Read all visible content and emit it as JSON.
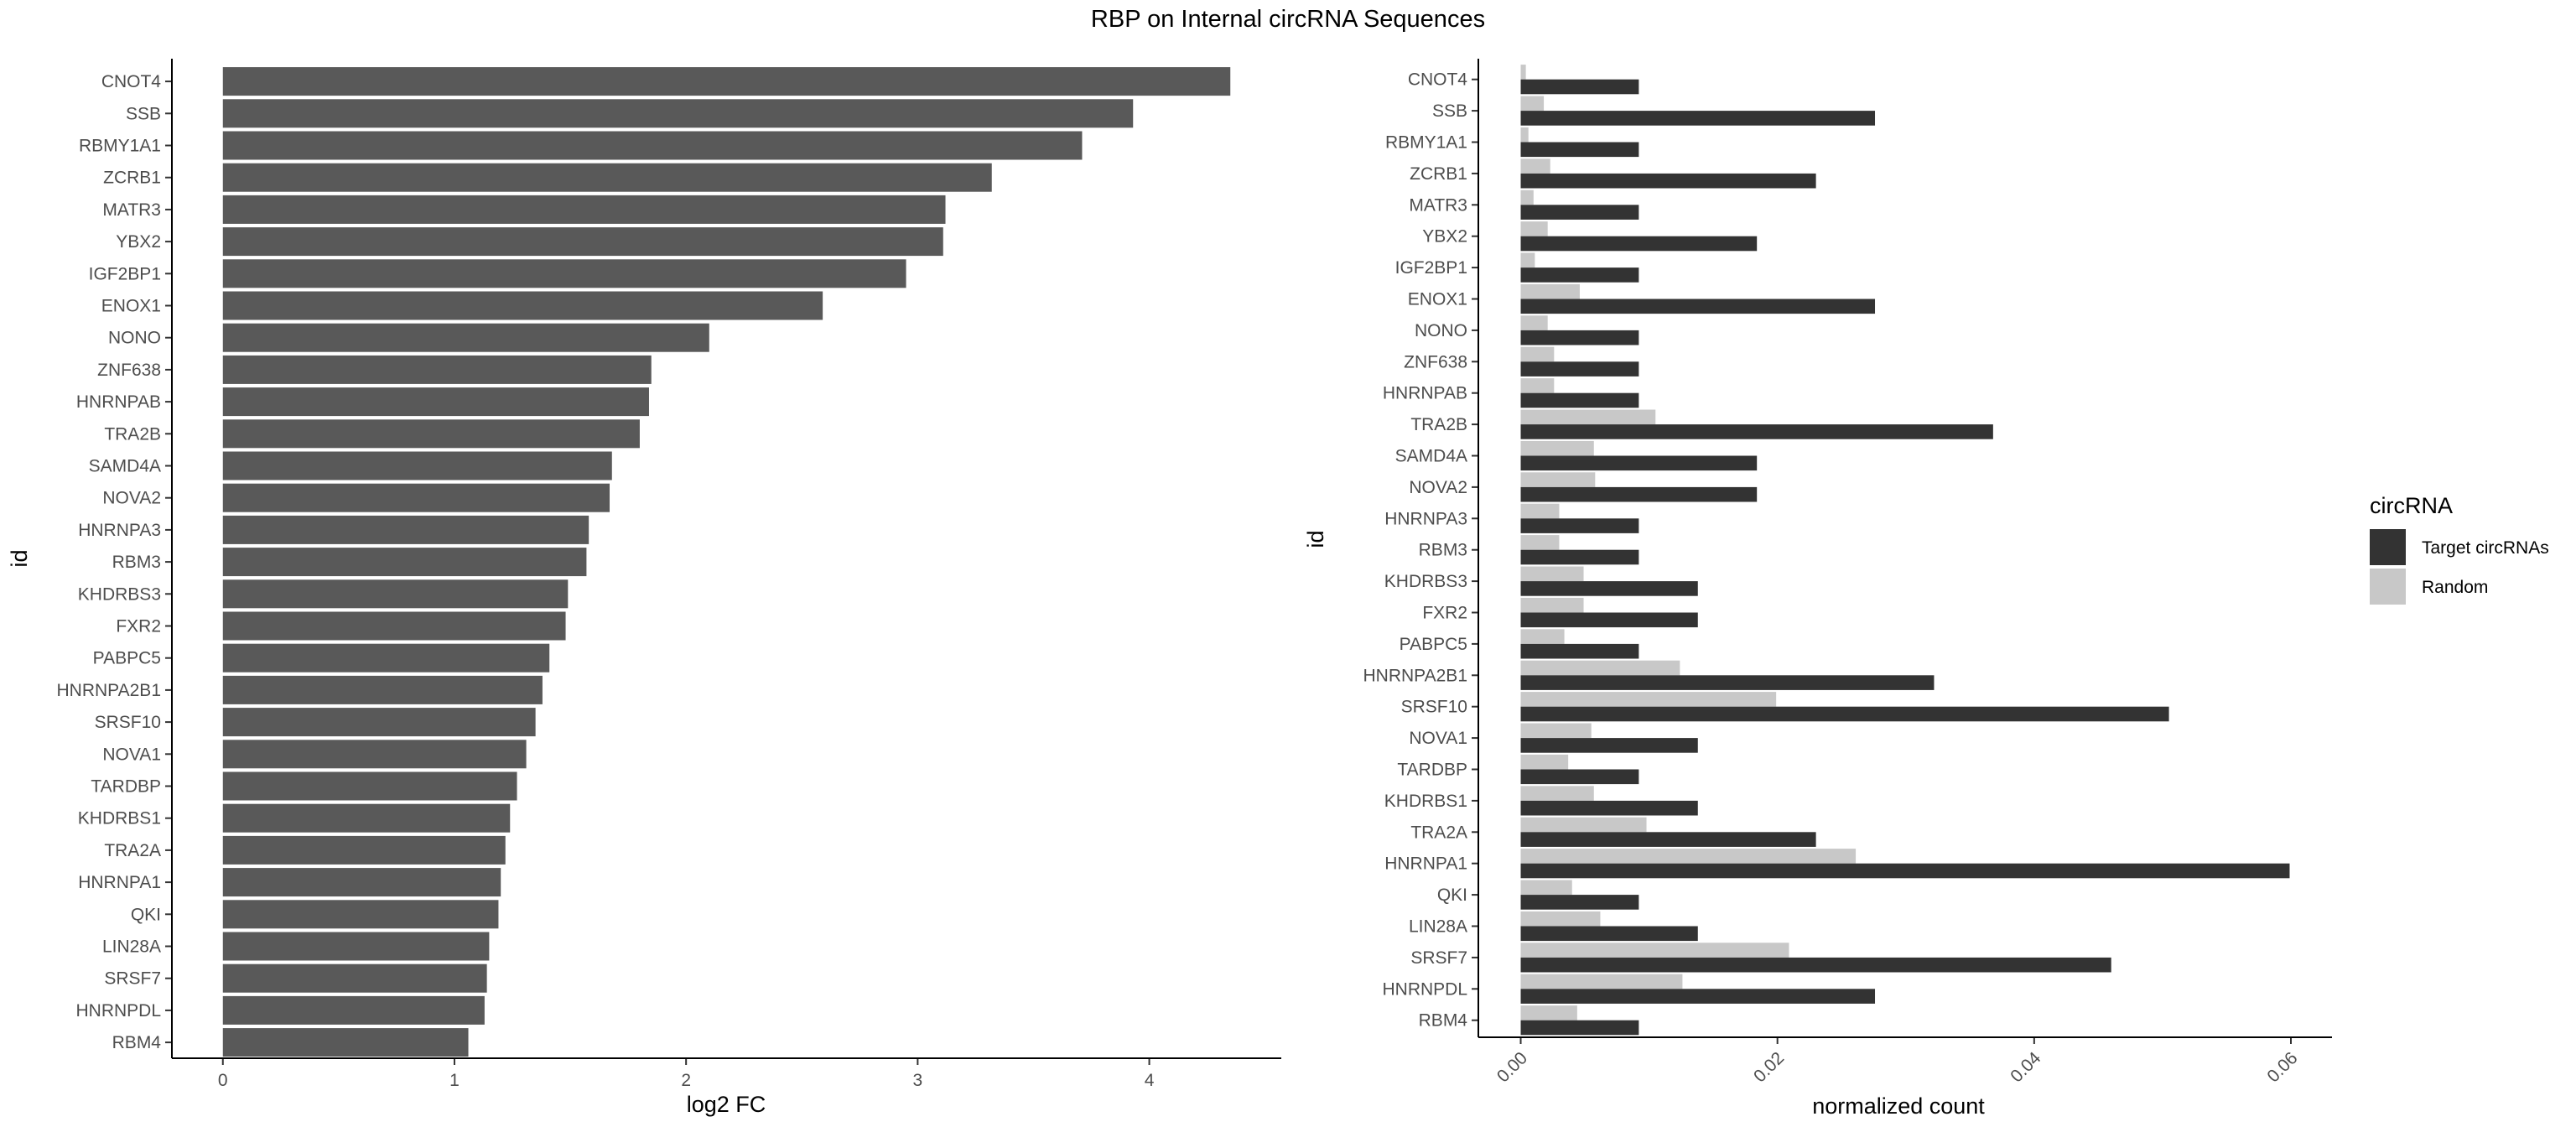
{
  "title": "RBP on Internal circRNA Sequences",
  "chart_data": [
    {
      "type": "bar",
      "orientation": "horizontal",
      "xlabel": "log2 FC",
      "ylabel": "id",
      "xlim": [
        -0.22,
        4.57
      ],
      "xticks": [
        "0",
        "1",
        "2",
        "3",
        "4"
      ],
      "grid": false,
      "categories": [
        "CNOT4",
        "SSB",
        "RBMY1A1",
        "ZCRB1",
        "MATR3",
        "YBX2",
        "IGF2BP1",
        "ENOX1",
        "NONO",
        "ZNF638",
        "HNRNPAB",
        "TRA2B",
        "SAMD4A",
        "NOVA2",
        "HNRNPA3",
        "RBM3",
        "KHDRBS3",
        "FXR2",
        "PABPC5",
        "HNRNPA2B1",
        "SRSF10",
        "NOVA1",
        "TARDBP",
        "KHDRBS1",
        "TRA2A",
        "HNRNPA1",
        "QKI",
        "LIN28A",
        "SRSF7",
        "HNRNPDL",
        "RBM4"
      ],
      "values": [
        4.35,
        3.93,
        3.71,
        3.32,
        3.12,
        3.11,
        2.95,
        2.59,
        2.1,
        1.85,
        1.84,
        1.8,
        1.68,
        1.67,
        1.58,
        1.57,
        1.49,
        1.48,
        1.41,
        1.38,
        1.35,
        1.31,
        1.27,
        1.24,
        1.22,
        1.2,
        1.19,
        1.15,
        1.14,
        1.13,
        1.06
      ],
      "color": "#595959"
    },
    {
      "type": "bar",
      "orientation": "horizontal",
      "grouped": true,
      "xlabel": "normalized count",
      "ylabel": "id",
      "xlim": [
        -0.0033,
        0.0632
      ],
      "xticks": [
        "0.00",
        "0.02",
        "0.04",
        "0.06"
      ],
      "grid": false,
      "categories": [
        "CNOT4",
        "SSB",
        "RBMY1A1",
        "ZCRB1",
        "MATR3",
        "YBX2",
        "IGF2BP1",
        "ENOX1",
        "NONO",
        "ZNF638",
        "HNRNPAB",
        "TRA2B",
        "SAMD4A",
        "NOVA2",
        "HNRNPA3",
        "RBM3",
        "KHDRBS3",
        "FXR2",
        "PABPC5",
        "HNRNPA2B1",
        "SRSF10",
        "NOVA1",
        "TARDBP",
        "KHDRBS1",
        "TRA2A",
        "HNRNPA1",
        "QKI",
        "LIN28A",
        "SRSF7",
        "HNRNPDL",
        "RBM4"
      ],
      "legend_title": "circRNA",
      "legend_position": "right",
      "series": [
        {
          "name": "Random",
          "color": "#c8c8c8",
          "values": [
            0.0004,
            0.0018,
            0.0006,
            0.0023,
            0.001,
            0.0021,
            0.0011,
            0.0046,
            0.0021,
            0.0026,
            0.0026,
            0.0105,
            0.0057,
            0.0058,
            0.003,
            0.003,
            0.0049,
            0.0049,
            0.0034,
            0.0124,
            0.0199,
            0.0055,
            0.0037,
            0.0057,
            0.0098,
            0.0261,
            0.004,
            0.0062,
            0.0209,
            0.0126,
            0.0044
          ]
        },
        {
          "name": "Target circRNAs",
          "color": "#333333",
          "values": [
            0.0092,
            0.0276,
            0.0092,
            0.023,
            0.0092,
            0.0184,
            0.0092,
            0.0276,
            0.0092,
            0.0092,
            0.0092,
            0.0368,
            0.0184,
            0.0184,
            0.0092,
            0.0092,
            0.0138,
            0.0138,
            0.0092,
            0.0322,
            0.0505,
            0.0138,
            0.0092,
            0.0138,
            0.023,
            0.0599,
            0.0092,
            0.0138,
            0.046,
            0.0276,
            0.0092
          ]
        }
      ]
    }
  ]
}
